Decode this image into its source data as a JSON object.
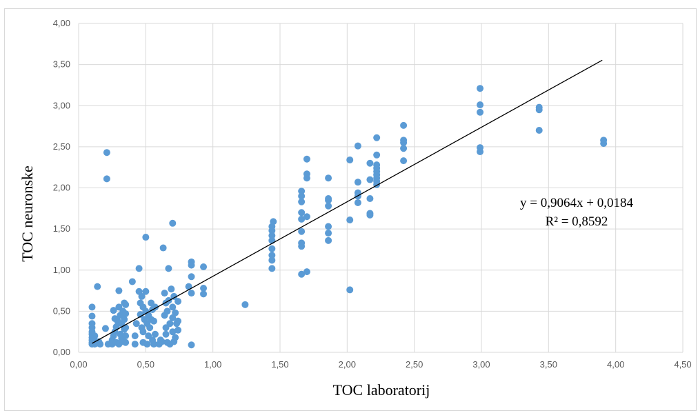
{
  "chart_data": {
    "type": "scatter",
    "title": "",
    "xlabel": "TOC laboratorij",
    "ylabel": "TOC neuronske",
    "xlim": [
      0,
      4.5
    ],
    "ylim": [
      0,
      4.0
    ],
    "x_ticks": [
      "0,00",
      "0,50",
      "1,00",
      "1,50",
      "2,00",
      "2,50",
      "3,00",
      "3,50",
      "4,00",
      "4,50"
    ],
    "y_ticks": [
      "0,00",
      "0,50",
      "1,00",
      "1,50",
      "2,00",
      "2,50",
      "3,00",
      "3,50",
      "4,00"
    ],
    "grid": "horizontal",
    "colors": {
      "points": "#5b9bd5",
      "trendline": "#000000",
      "grid": "#d9d9d9"
    },
    "trendline": {
      "type": "linear",
      "slope": 0.9064,
      "intercept": 0.0184,
      "x_range": [
        0.1,
        3.9
      ],
      "equation_label": "y = 0,9064x + 0,0184",
      "r2_label": "R² = 0,8592"
    },
    "series": [
      {
        "points": [
          [
            0.1,
            0.1
          ],
          [
            0.1,
            0.12
          ],
          [
            0.1,
            0.15
          ],
          [
            0.1,
            0.18
          ],
          [
            0.1,
            0.22
          ],
          [
            0.1,
            0.25
          ],
          [
            0.1,
            0.3
          ],
          [
            0.1,
            0.35
          ],
          [
            0.1,
            0.44
          ],
          [
            0.1,
            0.55
          ],
          [
            0.12,
            0.1
          ],
          [
            0.12,
            0.14
          ],
          [
            0.12,
            0.2
          ],
          [
            0.13,
            0.11
          ],
          [
            0.14,
            0.8
          ],
          [
            0.15,
            0.13
          ],
          [
            0.16,
            0.1
          ],
          [
            0.2,
            0.29
          ],
          [
            0.21,
            2.43
          ],
          [
            0.21,
            2.11
          ],
          [
            0.22,
            0.1
          ],
          [
            0.25,
            0.1
          ],
          [
            0.25,
            0.15
          ],
          [
            0.26,
            0.51
          ],
          [
            0.26,
            0.2
          ],
          [
            0.27,
            0.41
          ],
          [
            0.27,
            0.25
          ],
          [
            0.28,
            0.12
          ],
          [
            0.28,
            0.31
          ],
          [
            0.29,
            0.38
          ],
          [
            0.3,
            0.1
          ],
          [
            0.3,
            0.55
          ],
          [
            0.3,
            0.75
          ],
          [
            0.31,
            0.45
          ],
          [
            0.31,
            0.22
          ],
          [
            0.32,
            0.17
          ],
          [
            0.32,
            0.35
          ],
          [
            0.33,
            0.5
          ],
          [
            0.33,
            0.13
          ],
          [
            0.34,
            0.6
          ],
          [
            0.34,
            0.28
          ],
          [
            0.34,
            0.4
          ],
          [
            0.35,
            0.58
          ],
          [
            0.35,
            0.47
          ],
          [
            0.35,
            0.3
          ],
          [
            0.35,
            0.12
          ],
          [
            0.35,
            0.2
          ],
          [
            0.4,
            0.86
          ],
          [
            0.42,
            0.1
          ],
          [
            0.42,
            0.2
          ],
          [
            0.43,
            0.35
          ],
          [
            0.45,
            1.02
          ],
          [
            0.45,
            0.74
          ],
          [
            0.46,
            0.6
          ],
          [
            0.46,
            0.46
          ],
          [
            0.47,
            0.3
          ],
          [
            0.47,
            0.68
          ],
          [
            0.48,
            0.55
          ],
          [
            0.48,
            0.25
          ],
          [
            0.48,
            0.12
          ],
          [
            0.49,
            0.4
          ],
          [
            0.5,
            1.4
          ],
          [
            0.5,
            0.74
          ],
          [
            0.5,
            0.5
          ],
          [
            0.51,
            0.35
          ],
          [
            0.51,
            0.1
          ],
          [
            0.52,
            0.45
          ],
          [
            0.52,
            0.2
          ],
          [
            0.53,
            0.3
          ],
          [
            0.54,
            0.6
          ],
          [
            0.54,
            0.4
          ],
          [
            0.55,
            0.52
          ],
          [
            0.55,
            0.15
          ],
          [
            0.56,
            0.38
          ],
          [
            0.56,
            0.1
          ],
          [
            0.57,
            0.55
          ],
          [
            0.57,
            0.22
          ],
          [
            0.6,
            0.1
          ],
          [
            0.61,
            0.15
          ],
          [
            0.62,
            0.13
          ],
          [
            0.63,
            1.27
          ],
          [
            0.64,
            0.72
          ],
          [
            0.64,
            0.45
          ],
          [
            0.65,
            0.3
          ],
          [
            0.65,
            0.6
          ],
          [
            0.65,
            0.22
          ],
          [
            0.66,
            0.12
          ],
          [
            0.66,
            0.5
          ],
          [
            0.67,
            1.02
          ],
          [
            0.67,
            0.63
          ],
          [
            0.68,
            0.35
          ],
          [
            0.68,
            0.1
          ],
          [
            0.69,
            0.77
          ],
          [
            0.7,
            1.57
          ],
          [
            0.7,
            0.55
          ],
          [
            0.7,
            0.42
          ],
          [
            0.7,
            0.25
          ],
          [
            0.71,
            0.13
          ],
          [
            0.71,
            0.68
          ],
          [
            0.72,
            0.48
          ],
          [
            0.72,
            0.18
          ],
          [
            0.73,
            0.35
          ],
          [
            0.74,
            0.62
          ],
          [
            0.74,
            0.27
          ],
          [
            0.74,
            0.38
          ],
          [
            0.82,
            0.8
          ],
          [
            0.84,
            0.72
          ],
          [
            0.84,
            0.92
          ],
          [
            0.84,
            1.06
          ],
          [
            0.84,
            1.1
          ],
          [
            0.84,
            0.09
          ],
          [
            0.93,
            1.04
          ],
          [
            0.93,
            0.78
          ],
          [
            0.93,
            0.71
          ],
          [
            1.24,
            0.58
          ],
          [
            1.44,
            1.02
          ],
          [
            1.44,
            1.12
          ],
          [
            1.44,
            1.18
          ],
          [
            1.44,
            1.26
          ],
          [
            1.44,
            1.36
          ],
          [
            1.44,
            1.42
          ],
          [
            1.44,
            1.48
          ],
          [
            1.44,
            1.53
          ],
          [
            1.45,
            1.59
          ],
          [
            1.66,
            0.95
          ],
          [
            1.66,
            1.29
          ],
          [
            1.66,
            1.33
          ],
          [
            1.66,
            1.47
          ],
          [
            1.66,
            1.62
          ],
          [
            1.66,
            1.7
          ],
          [
            1.66,
            1.83
          ],
          [
            1.66,
            1.9
          ],
          [
            1.66,
            1.96
          ],
          [
            1.7,
            0.98
          ],
          [
            1.7,
            1.65
          ],
          [
            1.7,
            2.12
          ],
          [
            1.7,
            2.17
          ],
          [
            1.7,
            2.35
          ],
          [
            1.86,
            1.36
          ],
          [
            1.86,
            1.45
          ],
          [
            1.86,
            1.53
          ],
          [
            1.86,
            1.78
          ],
          [
            1.86,
            1.85
          ],
          [
            1.86,
            1.87
          ],
          [
            1.86,
            2.12
          ],
          [
            2.02,
            0.76
          ],
          [
            2.02,
            1.61
          ],
          [
            2.02,
            2.34
          ],
          [
            2.08,
            1.82
          ],
          [
            2.08,
            1.9
          ],
          [
            2.08,
            1.94
          ],
          [
            2.08,
            2.07
          ],
          [
            2.08,
            2.51
          ],
          [
            2.17,
            1.67
          ],
          [
            2.17,
            1.69
          ],
          [
            2.17,
            1.87
          ],
          [
            2.17,
            2.1
          ],
          [
            2.17,
            2.3
          ],
          [
            2.22,
            2.04
          ],
          [
            2.22,
            2.08
          ],
          [
            2.22,
            2.12
          ],
          [
            2.22,
            2.16
          ],
          [
            2.22,
            2.2
          ],
          [
            2.22,
            2.24
          ],
          [
            2.22,
            2.28
          ],
          [
            2.22,
            2.4
          ],
          [
            2.22,
            2.61
          ],
          [
            2.42,
            2.33
          ],
          [
            2.42,
            2.48
          ],
          [
            2.42,
            2.55
          ],
          [
            2.42,
            2.58
          ],
          [
            2.42,
            2.76
          ],
          [
            2.99,
            2.44
          ],
          [
            2.99,
            2.49
          ],
          [
            2.99,
            2.92
          ],
          [
            2.99,
            3.01
          ],
          [
            2.99,
            3.21
          ],
          [
            3.43,
            2.7
          ],
          [
            3.43,
            2.95
          ],
          [
            3.43,
            2.98
          ],
          [
            3.91,
            2.54
          ],
          [
            3.91,
            2.58
          ]
        ]
      }
    ]
  }
}
